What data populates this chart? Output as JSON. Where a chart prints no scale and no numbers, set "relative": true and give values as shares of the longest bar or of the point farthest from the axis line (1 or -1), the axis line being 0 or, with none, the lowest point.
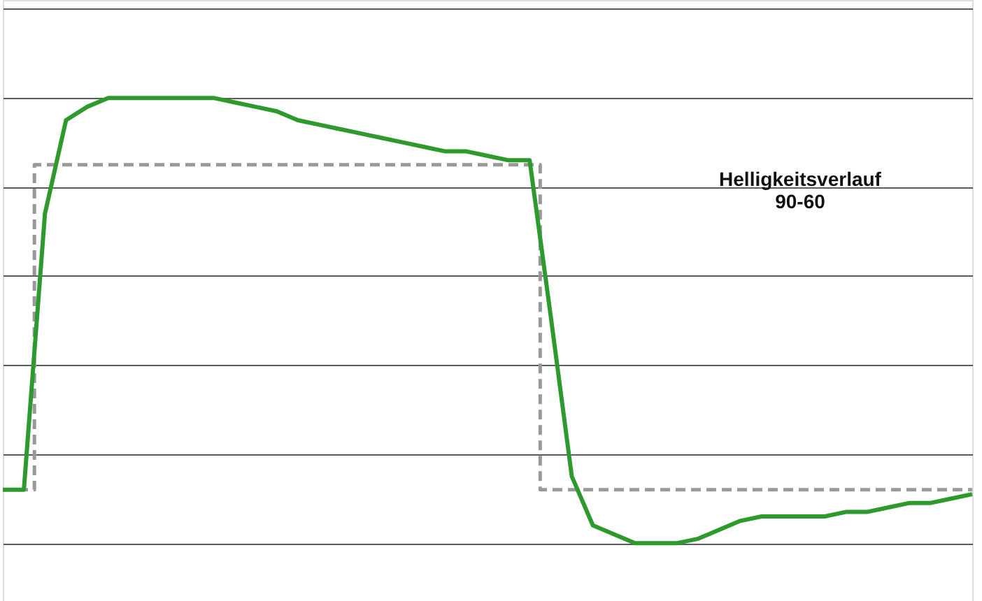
{
  "chart_data": {
    "type": "line",
    "relative": true,
    "grid": "y",
    "line_style": "solid",
    "marker": "none",
    "categories": [
      null,
      null,
      null,
      null,
      null,
      null,
      null,
      null,
      null,
      null,
      null,
      null,
      null,
      null,
      null,
      null,
      null,
      null,
      null,
      null,
      null,
      null,
      null,
      null,
      null,
      null,
      null,
      null,
      null,
      null,
      null,
      null,
      null,
      null,
      null,
      null,
      null,
      null,
      null,
      null,
      null,
      null,
      null,
      null,
      null,
      null,
      null
    ],
    "series": [
      {
        "type": "step",
        "line_style": "dashed",
        "color": "#999999",
        "values": [
          0.12,
          0.12,
          0.85,
          0.85,
          0.85,
          0.85,
          0.85,
          0.85,
          0.85,
          0.85,
          0.85,
          0.85,
          0.85,
          0.85,
          0.85,
          0.85,
          0.85,
          0.85,
          0.85,
          0.85,
          0.85,
          0.85,
          0.85,
          0.85,
          0.85,
          0.85,
          0.12,
          0.12,
          0.12,
          0.12,
          0.12,
          0.12,
          0.12,
          0.12,
          0.12,
          0.12,
          0.12,
          0.12,
          0.12,
          0.12,
          0.12,
          0.12,
          0.12,
          0.12,
          0.12,
          0.12,
          0.12
        ]
      },
      {
        "type": "line",
        "color": "#2e9a2e",
        "values": [
          0.12,
          0.12,
          0.74,
          0.95,
          0.98,
          1.0,
          1.0,
          1.0,
          1.0,
          1.0,
          1.0,
          0.99,
          0.98,
          0.97,
          0.95,
          0.94,
          0.93,
          0.92,
          0.91,
          0.9,
          0.89,
          0.88,
          0.88,
          0.87,
          0.86,
          0.86,
          0.51,
          0.15,
          0.04,
          0.02,
          0.0,
          0.0,
          0.0,
          0.01,
          0.03,
          0.05,
          0.06,
          0.06,
          0.06,
          0.06,
          0.07,
          0.07,
          0.08,
          0.09,
          0.09,
          0.1,
          0.11
        ]
      }
    ],
    "annotations": [
      "Helligkeitsverlauf\n90-60"
    ]
  }
}
